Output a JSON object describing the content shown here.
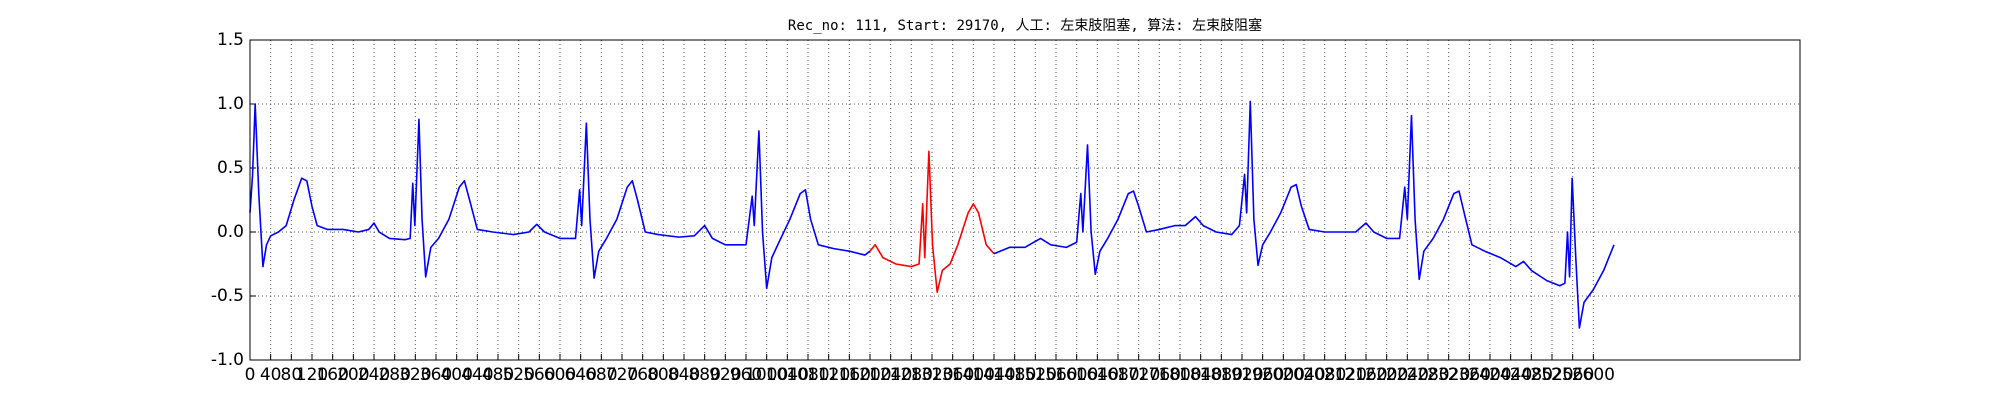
{
  "chart_data": {
    "type": "line",
    "title": "Rec_no: 111, Start: 29170, 人工: 左束肢阻塞, 算法: 左束肢阻塞",
    "xlim": [
      0,
      3000
    ],
    "xticks": [
      0,
      40,
      80,
      120,
      160,
      200,
      240,
      280,
      320,
      360,
      400,
      440,
      480,
      520,
      560,
      600,
      640,
      680,
      720,
      760,
      800,
      840,
      880,
      920,
      960,
      1000,
      1040,
      1080,
      1120,
      1160,
      1200,
      1240,
      1280,
      1320,
      1360,
      1400,
      1440,
      1480,
      1520,
      1560,
      1600,
      1640,
      1680,
      1720,
      1760,
      1800,
      1840,
      1880,
      1920,
      1960,
      2000,
      2040,
      2080,
      2120,
      2160,
      2200,
      2240,
      2280,
      2320,
      2360,
      2400,
      2440,
      2480,
      2520,
      2560,
      2600
    ],
    "ylim": [
      -1,
      1.5
    ],
    "yticks": [
      {
        "value": -1,
        "label": "-1.0"
      },
      -0.5,
      {
        "value": 0,
        "label": "0.0"
      },
      0.5,
      {
        "value": 1,
        "label": "1.0"
      },
      1.5
    ],
    "grid": true,
    "series": [
      {
        "color": "#0000ff",
        "x": [
          0,
          5,
          10,
          17,
          25,
          32,
          40,
          55,
          70,
          85,
          100,
          110,
          120,
          130,
          150,
          180,
          210,
          230,
          240,
          250,
          270,
          300,
          310,
          315,
          319,
          327,
          333,
          340,
          350,
          365,
          385,
          405,
          415,
          425,
          440,
          470,
          510,
          540,
          555,
          570,
          600,
          630,
          638,
          642,
          651,
          658,
          666,
          675,
          690,
          710,
          730,
          740,
          750,
          765,
          790,
          830,
          860,
          880,
          895,
          920,
          960,
          972,
          976,
          985,
          992,
          1000,
          1010,
          1025,
          1045,
          1065,
          1075,
          1085,
          1100,
          1130,
          1160,
          1190,
          1200
        ],
        "values": [
          0.15,
          0.45,
          1.0,
          0.3,
          -0.27,
          -0.1,
          -0.03,
          0.0,
          0.05,
          0.25,
          0.42,
          0.4,
          0.2,
          0.05,
          0.02,
          0.02,
          0.0,
          0.02,
          0.07,
          0.0,
          -0.05,
          -0.06,
          -0.05,
          0.38,
          0.05,
          0.88,
          0.1,
          -0.35,
          -0.12,
          -0.05,
          0.1,
          0.35,
          0.4,
          0.25,
          0.02,
          0.0,
          -0.02,
          0.0,
          0.06,
          0.0,
          -0.05,
          -0.05,
          0.33,
          0.05,
          0.85,
          0.1,
          -0.36,
          -0.15,
          -0.05,
          0.1,
          0.35,
          0.4,
          0.25,
          0.0,
          -0.02,
          -0.04,
          -0.03,
          0.05,
          -0.05,
          -0.1,
          -0.1,
          0.28,
          0.05,
          0.79,
          0.0,
          -0.44,
          -0.2,
          -0.07,
          0.1,
          0.3,
          0.33,
          0.1,
          -0.1,
          -0.13,
          -0.15,
          -0.18,
          -0.15
        ]
      },
      {
        "color": "#ff0000",
        "x": [
          1200,
          1210,
          1225,
          1250,
          1280,
          1295,
          1302,
          1306,
          1314,
          1321,
          1330,
          1340,
          1355,
          1370,
          1390,
          1400,
          1410,
          1425,
          1440
        ],
        "values": [
          -0.15,
          -0.1,
          -0.2,
          -0.25,
          -0.27,
          -0.25,
          0.22,
          -0.2,
          0.63,
          -0.1,
          -0.47,
          -0.3,
          -0.25,
          -0.1,
          0.15,
          0.22,
          0.15,
          -0.1,
          -0.17
        ]
      },
      {
        "color": "#0000ff",
        "x": [
          1440,
          1470,
          1500,
          1530,
          1550,
          1580,
          1600,
          1608,
          1612,
          1621,
          1628,
          1636,
          1645,
          1660,
          1680,
          1700,
          1710,
          1720,
          1735,
          1760,
          1790,
          1810,
          1830,
          1845,
          1870,
          1900,
          1915,
          1925,
          1929,
          1936,
          1943,
          1951,
          1960,
          1975,
          1995,
          2015,
          2025,
          2035,
          2050,
          2080,
          2110,
          2140,
          2160,
          2175,
          2200,
          2225,
          2235,
          2240,
          2248,
          2255,
          2263,
          2272,
          2290,
          2310,
          2330,
          2340,
          2350,
          2365,
          2390,
          2420,
          2450,
          2465,
          2480,
          2510,
          2535,
          2545,
          2550,
          2554,
          2559,
          2566,
          2573,
          2582,
          2600,
          2620,
          2640
        ],
        "values": [
          -0.17,
          -0.12,
          -0.12,
          -0.05,
          -0.1,
          -0.12,
          -0.08,
          0.3,
          0.0,
          0.68,
          0.0,
          -0.33,
          -0.15,
          -0.05,
          0.1,
          0.3,
          0.32,
          0.2,
          0.0,
          0.02,
          0.05,
          0.05,
          0.12,
          0.05,
          0.0,
          -0.02,
          0.05,
          0.45,
          0.15,
          1.02,
          0.1,
          -0.26,
          -0.1,
          0.0,
          0.15,
          0.35,
          0.37,
          0.2,
          0.02,
          0.0,
          0.0,
          0.0,
          0.07,
          0.0,
          -0.05,
          -0.05,
          0.35,
          0.1,
          0.91,
          0.1,
          -0.37,
          -0.15,
          -0.05,
          0.1,
          0.3,
          0.32,
          0.15,
          -0.1,
          -0.15,
          -0.2,
          -0.27,
          -0.23,
          -0.3,
          -0.38,
          -0.42,
          -0.4,
          0.0,
          -0.35,
          0.42,
          -0.2,
          -0.75,
          -0.55,
          -0.45,
          -0.3,
          -0.1
        ]
      }
    ]
  }
}
